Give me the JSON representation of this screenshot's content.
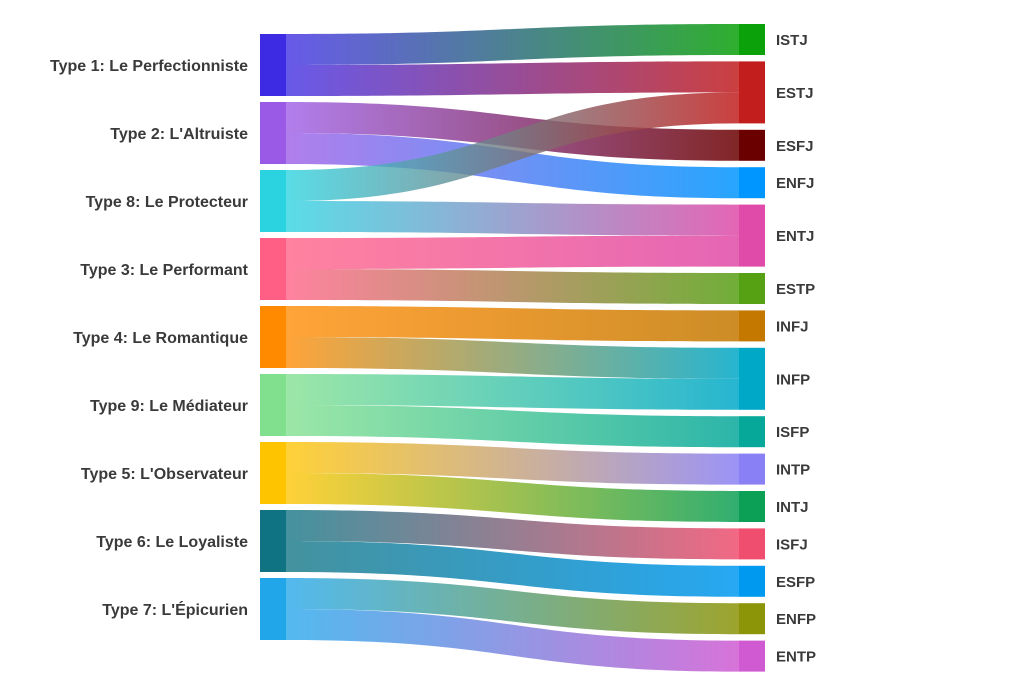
{
  "chart_data": {
    "type": "sankey",
    "title": "",
    "sources": [
      {
        "id": "T1",
        "label": "Type 1: Le Perfectionniste",
        "color": "#3d2be3"
      },
      {
        "id": "T2",
        "label": "Type 2: L'Altruiste",
        "color": "#9b5ae6"
      },
      {
        "id": "T8",
        "label": "Type 8: Le Protecteur",
        "color": "#2bd3e0"
      },
      {
        "id": "T3",
        "label": "Type 3: Le Performant",
        "color": "#ff5f85"
      },
      {
        "id": "T4",
        "label": "Type 4: Le Romantique",
        "color": "#ff8a00"
      },
      {
        "id": "T9",
        "label": "Type 9: Le Médiateur",
        "color": "#80e08e"
      },
      {
        "id": "T5",
        "label": "Type 5: L'Observateur",
        "color": "#ffc400"
      },
      {
        "id": "T6",
        "label": "Type 6: Le Loyaliste",
        "color": "#0f7383"
      },
      {
        "id": "T7",
        "label": "Type 7: L'Épicurien",
        "color": "#22a6ea"
      }
    ],
    "targets": [
      {
        "id": "ISTJ",
        "label": "ISTJ",
        "color": "#0aa10a"
      },
      {
        "id": "ESTJ",
        "label": "ESTJ",
        "color": "#c21e1e"
      },
      {
        "id": "ESFJ",
        "label": "ESFJ",
        "color": "#6b0000"
      },
      {
        "id": "ENFJ",
        "label": "ENFJ",
        "color": "#0096ff"
      },
      {
        "id": "ENTJ",
        "label": "ENTJ",
        "color": "#e04aa8"
      },
      {
        "id": "ESTP",
        "label": "ESTP",
        "color": "#56a014"
      },
      {
        "id": "INFJ",
        "label": "INFJ",
        "color": "#c47800"
      },
      {
        "id": "INFP",
        "label": "INFP",
        "color": "#00a8c8"
      },
      {
        "id": "ISFP",
        "label": "ISFP",
        "color": "#06a89a"
      },
      {
        "id": "INTP",
        "label": "INTP",
        "color": "#8a80f5"
      },
      {
        "id": "INTJ",
        "label": "INTJ",
        "color": "#0ca056"
      },
      {
        "id": "ISFJ",
        "label": "ISFJ",
        "color": "#f04e6e"
      },
      {
        "id": "ESFP",
        "label": "ESFP",
        "color": "#0099f0"
      },
      {
        "id": "ENFP",
        "label": "ENFP",
        "color": "#8c9408"
      },
      {
        "id": "ENTP",
        "label": "ENTP",
        "color": "#d05ad2"
      }
    ],
    "links": [
      {
        "source": "T1",
        "target": "ISTJ",
        "value": 1
      },
      {
        "source": "T1",
        "target": "ESTJ",
        "value": 1
      },
      {
        "source": "T2",
        "target": "ESFJ",
        "value": 1
      },
      {
        "source": "T2",
        "target": "ENFJ",
        "value": 1
      },
      {
        "source": "T8",
        "target": "ESTJ",
        "value": 1
      },
      {
        "source": "T8",
        "target": "ENTJ",
        "value": 1
      },
      {
        "source": "T3",
        "target": "ENTJ",
        "value": 1
      },
      {
        "source": "T3",
        "target": "ESTP",
        "value": 1
      },
      {
        "source": "T4",
        "target": "INFJ",
        "value": 1
      },
      {
        "source": "T4",
        "target": "INFP",
        "value": 1
      },
      {
        "source": "T9",
        "target": "INFP",
        "value": 1
      },
      {
        "source": "T9",
        "target": "ISFP",
        "value": 1
      },
      {
        "source": "T5",
        "target": "INTP",
        "value": 1
      },
      {
        "source": "T5",
        "target": "INTJ",
        "value": 1
      },
      {
        "source": "T6",
        "target": "ISFJ",
        "value": 1
      },
      {
        "source": "T6",
        "target": "ESFP",
        "value": 1
      },
      {
        "source": "T7",
        "target": "ENFP",
        "value": 1
      },
      {
        "source": "T7",
        "target": "ENTP",
        "value": 1
      }
    ]
  }
}
